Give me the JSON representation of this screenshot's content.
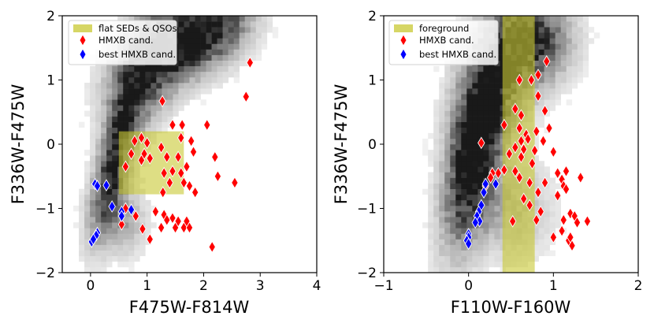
{
  "chart_data": [
    {
      "type": "scatter",
      "name": "left-panel",
      "xlabel": "F475W-F814W",
      "ylabel": "F336W-F475W",
      "xlim": [
        -0.5,
        4
      ],
      "ylim": [
        -2,
        2
      ],
      "y_inverted": false,
      "xticks": [
        0,
        1,
        2,
        3,
        4
      ],
      "yticks": [
        -2,
        -1,
        0,
        1,
        2
      ],
      "xtick_labels": [
        "0",
        "1",
        "2",
        "3",
        "4"
      ],
      "ytick_labels": [
        "−2",
        "−1",
        "0",
        "1",
        "2"
      ],
      "legend_position": "top-left",
      "region": {
        "label": "flat SEDs & QSOs",
        "x": [
          0.5,
          1.65
        ],
        "y": [
          -0.78,
          0.2
        ],
        "color": "#c8c832"
      },
      "density_background": "grey 2D histogram of the stellar population",
      "series": [
        {
          "name": "HMXB cand.",
          "color": "#ff0000",
          "points": [
            [
              1.27,
              0.67
            ],
            [
              1.45,
              0.3
            ],
            [
              1.62,
              0.3
            ],
            [
              2.06,
              0.3
            ],
            [
              2.75,
              0.74
            ],
            [
              2.82,
              1.27
            ],
            [
              0.78,
              0.05
            ],
            [
              0.9,
              0.1
            ],
            [
              1.0,
              0.02
            ],
            [
              1.25,
              -0.05
            ],
            [
              1.6,
              0.1
            ],
            [
              1.78,
              0.05
            ],
            [
              0.72,
              -0.15
            ],
            [
              0.95,
              -0.15
            ],
            [
              1.05,
              -0.22
            ],
            [
              1.35,
              -0.2
            ],
            [
              1.55,
              -0.2
            ],
            [
              1.82,
              -0.12
            ],
            [
              2.2,
              -0.2
            ],
            [
              0.62,
              -0.35
            ],
            [
              0.9,
              -0.25
            ],
            [
              1.3,
              -0.45
            ],
            [
              1.45,
              -0.42
            ],
            [
              1.6,
              -0.45
            ],
            [
              1.7,
              -0.35
            ],
            [
              2.25,
              -0.5
            ],
            [
              2.55,
              -0.6
            ],
            [
              1.4,
              -0.6
            ],
            [
              1.65,
              -0.6
            ],
            [
              1.75,
              -0.65
            ],
            [
              1.28,
              -0.75
            ],
            [
              1.85,
              -0.75
            ],
            [
              0.62,
              -1.0
            ],
            [
              0.8,
              -1.12
            ],
            [
              1.15,
              -1.05
            ],
            [
              1.3,
              -1.1
            ],
            [
              1.35,
              -1.18
            ],
            [
              1.45,
              -1.15
            ],
            [
              1.55,
              -1.2
            ],
            [
              1.7,
              -1.2
            ],
            [
              0.92,
              -1.32
            ],
            [
              1.25,
              -1.3
            ],
            [
              1.5,
              -1.3
            ],
            [
              1.65,
              -1.3
            ],
            [
              1.75,
              -1.3
            ],
            [
              0.55,
              -1.25
            ],
            [
              1.05,
              -1.48
            ],
            [
              2.15,
              -1.6
            ]
          ]
        },
        {
          "name": "best HMXB cand.",
          "color": "#0000ff",
          "points": [
            [
              0.08,
              -0.62
            ],
            [
              0.12,
              -0.65
            ],
            [
              0.28,
              -0.64
            ],
            [
              0.38,
              -0.97
            ],
            [
              0.55,
              -1.05
            ],
            [
              0.55,
              -1.12
            ],
            [
              0.72,
              -1.02
            ],
            [
              0.12,
              -1.38
            ],
            [
              0.1,
              -1.42
            ],
            [
              0.02,
              -1.52
            ],
            [
              0.05,
              -1.48
            ]
          ]
        }
      ]
    },
    {
      "type": "scatter",
      "name": "right-panel",
      "xlabel": "F110W-F160W",
      "ylabel": "F336W-F475W",
      "xlim": [
        -1,
        2
      ],
      "ylim": [
        -2,
        2
      ],
      "xticks": [
        -1,
        0,
        1,
        2
      ],
      "yticks": [
        -2,
        -1,
        0,
        1,
        2
      ],
      "xtick_labels": [
        "−1",
        "0",
        "1",
        "2"
      ],
      "ytick_labels": [
        "−2",
        "−1",
        "0",
        "1",
        "2"
      ],
      "legend_position": "top-left",
      "region": {
        "label": "foreground",
        "x": [
          0.4,
          0.78
        ],
        "y": [
          -2,
          2
        ],
        "color": "#c8c832"
      },
      "density_background": "grey 2D histogram of the stellar population",
      "series": [
        {
          "name": "HMXB cand.",
          "color": "#ff0000",
          "points": [
            [
              0.92,
              1.29
            ],
            [
              0.82,
              1.08
            ],
            [
              0.6,
              1.0
            ],
            [
              0.74,
              1.0
            ],
            [
              0.82,
              0.75
            ],
            [
              0.55,
              0.55
            ],
            [
              0.9,
              0.52
            ],
            [
              0.62,
              0.45
            ],
            [
              0.95,
              0.25
            ],
            [
              0.42,
              0.3
            ],
            [
              0.6,
              0.25
            ],
            [
              0.68,
              0.15
            ],
            [
              0.8,
              0.2
            ],
            [
              0.62,
              0.05
            ],
            [
              0.7,
              0.08
            ],
            [
              0.88,
              0.05
            ],
            [
              0.15,
              0.02
            ],
            [
              0.55,
              -0.05
            ],
            [
              0.65,
              -0.08
            ],
            [
              0.78,
              -0.1
            ],
            [
              0.48,
              -0.15
            ],
            [
              0.62,
              -0.2
            ],
            [
              0.75,
              -0.3
            ],
            [
              0.42,
              -0.4
            ],
            [
              0.55,
              -0.42
            ],
            [
              1.0,
              -0.12
            ],
            [
              0.35,
              -0.45
            ],
            [
              0.28,
              -0.45
            ],
            [
              0.26,
              -0.52
            ],
            [
              0.6,
              -0.52
            ],
            [
              0.72,
              -0.6
            ],
            [
              1.05,
              -0.45
            ],
            [
              1.1,
              -0.55
            ],
            [
              1.15,
              -0.42
            ],
            [
              1.32,
              -0.52
            ],
            [
              0.9,
              -0.6
            ],
            [
              1.12,
              -0.65
            ],
            [
              0.2,
              -0.65
            ],
            [
              0.82,
              -0.75
            ],
            [
              0.65,
              -0.85
            ],
            [
              0.72,
              -0.95
            ],
            [
              1.05,
              -0.8
            ],
            [
              1.15,
              -0.7
            ],
            [
              0.85,
              -1.05
            ],
            [
              1.2,
              -1.08
            ],
            [
              1.25,
              -1.12
            ],
            [
              1.4,
              -1.2
            ],
            [
              0.8,
              -1.18
            ],
            [
              1.12,
              -1.18
            ],
            [
              1.28,
              -1.22
            ],
            [
              0.52,
              -1.2
            ],
            [
              1.1,
              -1.35
            ],
            [
              1.0,
              -1.45
            ],
            [
              1.18,
              -1.5
            ],
            [
              1.22,
              -1.58
            ],
            [
              1.2,
              -1.45
            ]
          ]
        },
        {
          "name": "best HMXB cand.",
          "color": "#0000ff",
          "points": [
            [
              0.2,
              -0.62
            ],
            [
              0.32,
              -0.62
            ],
            [
              0.18,
              -0.75
            ],
            [
              0.15,
              -0.95
            ],
            [
              0.12,
              -1.05
            ],
            [
              0.1,
              -1.12
            ],
            [
              0.13,
              -1.2
            ],
            [
              0.08,
              -1.22
            ],
            [
              0.0,
              -1.4
            ],
            [
              0.0,
              -1.45
            ],
            [
              -0.02,
              -1.5
            ],
            [
              0.0,
              -1.55
            ]
          ]
        }
      ]
    }
  ]
}
